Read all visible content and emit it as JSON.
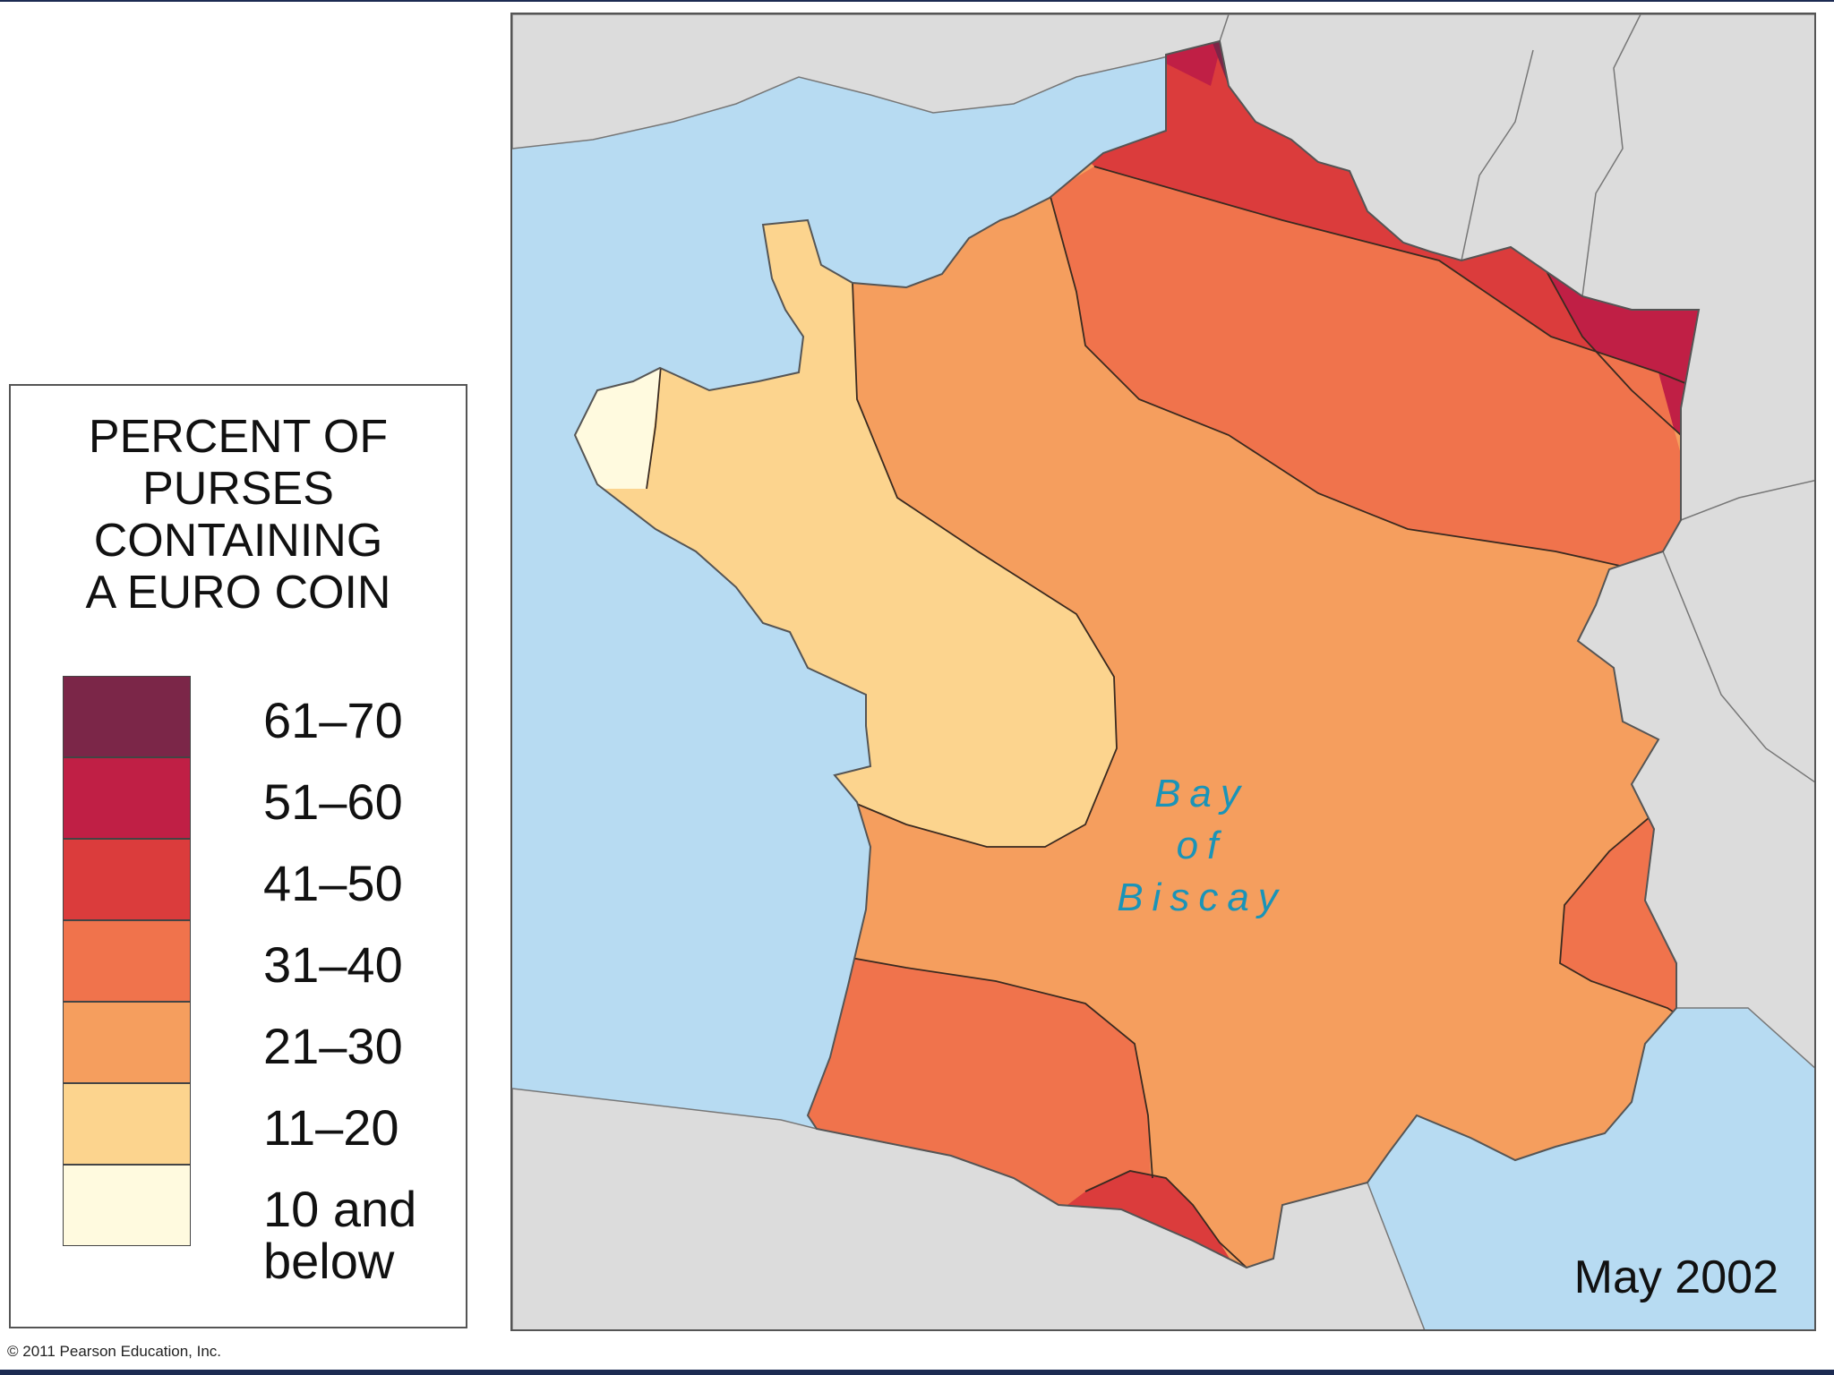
{
  "legend": {
    "title_lines": [
      "PERCENT OF",
      "PURSES",
      "CONTAINING",
      "A EURO COIN"
    ],
    "classes": [
      {
        "label": "61–70",
        "color": "#7b2648"
      },
      {
        "label": "51–60",
        "color": "#c01f45"
      },
      {
        "label": "41–50",
        "color": "#db3c3c"
      },
      {
        "label": "31–40",
        "color": "#f0734c"
      },
      {
        "label": "21–30",
        "color": "#f59e5e"
      },
      {
        "label": "11–20",
        "color": "#fcd48e"
      },
      {
        "label_line1": "10 and",
        "label_line2": "below",
        "color": "#fffadf"
      }
    ]
  },
  "map": {
    "water_label": [
      "Bay",
      "of",
      "Biscay"
    ],
    "date": "May 2002",
    "colors": {
      "sea": "#b7dbf2",
      "land": "#dcdcdc",
      "border": "#555555"
    }
  },
  "footer": {
    "copyright": "© 2011 Pearson Education, Inc."
  }
}
